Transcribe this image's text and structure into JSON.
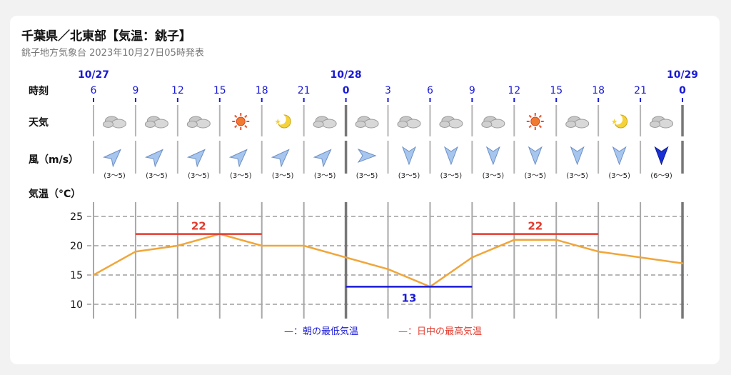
{
  "header": {
    "title": "千葉県／北東部【気温：銚子】",
    "subtitle": "銚子地方気象台 2023年10月27日05時発表"
  },
  "colors": {
    "blue_text": "#1a1ad6",
    "grid": "#9a9a9a",
    "temp_line": "#f0a63a",
    "max_line": "#e23b2e",
    "min_line": "#1a1ad6",
    "arrow_light": "#a7c6ef",
    "arrow_dark": "#1a2fd6"
  },
  "rows": {
    "time_label": "時刻",
    "weather_label": "天気",
    "wind_label": "風（m/s）",
    "temp_label": "気温（°C）"
  },
  "dates": [
    {
      "text": "10/27",
      "col": 0
    },
    {
      "text": "10/28",
      "col": 6
    },
    {
      "text": "10/29",
      "col": 14
    }
  ],
  "hours": [
    "6",
    "9",
    "12",
    "15",
    "18",
    "21",
    "0",
    "3",
    "6",
    "9",
    "12",
    "15",
    "18",
    "21",
    "0"
  ],
  "weather": [
    "cloudy",
    "cloudy",
    "cloudy",
    "sunny",
    "moon-clear",
    "cloudy",
    "cloudy",
    "cloudy",
    "cloudy",
    "cloudy",
    "sunny",
    "cloudy",
    "moon-clear",
    "cloudy"
  ],
  "wind": [
    {
      "dir": "northeast",
      "speed": "(3〜5)",
      "strong": false
    },
    {
      "dir": "northeast",
      "speed": "(3〜5)",
      "strong": false
    },
    {
      "dir": "northeast",
      "speed": "(3〜5)",
      "strong": false
    },
    {
      "dir": "northeast",
      "speed": "(3〜5)",
      "strong": false
    },
    {
      "dir": "northeast",
      "speed": "(3〜5)",
      "strong": false
    },
    {
      "dir": "northeast",
      "speed": "(3〜5)",
      "strong": false
    },
    {
      "dir": "east",
      "speed": "(3〜5)",
      "strong": false
    },
    {
      "dir": "south",
      "speed": "(3〜5)",
      "strong": false
    },
    {
      "dir": "south",
      "speed": "(3〜5)",
      "strong": false
    },
    {
      "dir": "south",
      "speed": "(3〜5)",
      "strong": false
    },
    {
      "dir": "south",
      "speed": "(3〜5)",
      "strong": false
    },
    {
      "dir": "south",
      "speed": "(3〜5)",
      "strong": false
    },
    {
      "dir": "south",
      "speed": "(3〜5)",
      "strong": false
    },
    {
      "dir": "south",
      "speed": "(6〜9)",
      "strong": true
    }
  ],
  "chart_data": {
    "type": "line",
    "ylabel": "気温（°C）",
    "ylim": [
      8,
      28
    ],
    "yticks": [
      25,
      20,
      15,
      10
    ],
    "grid": true,
    "x": [
      "10/27 6",
      "9",
      "12",
      "15",
      "18",
      "21",
      "10/28 0",
      "3",
      "6",
      "9",
      "12",
      "15",
      "18",
      "21",
      "10/29 0"
    ],
    "series": [
      {
        "values": [
          15,
          19,
          20,
          22,
          20,
          20,
          18,
          16,
          13,
          18,
          21,
          21,
          19,
          18,
          17
        ]
      }
    ],
    "annotations": [
      {
        "label": "22",
        "kind": "max",
        "value": 22,
        "from": 1,
        "to": 4
      },
      {
        "label": "13",
        "kind": "min",
        "value": 13,
        "from": 6,
        "to": 9
      },
      {
        "label": "22",
        "kind": "max",
        "value": 22,
        "from": 9,
        "to": 12
      }
    ],
    "legend": [
      {
        "kind": "min",
        "text": "—：朝の最低気温"
      },
      {
        "kind": "max",
        "text": "—：日中の最高気温"
      }
    ]
  }
}
